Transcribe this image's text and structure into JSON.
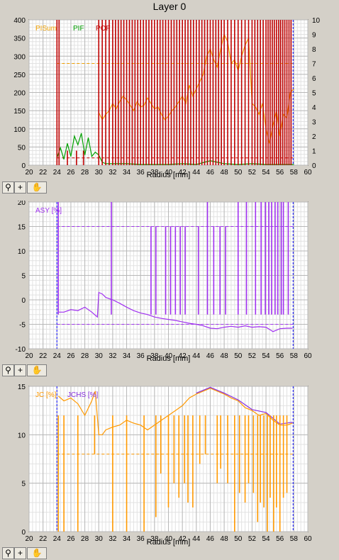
{
  "window": {
    "title": "Layer 0"
  },
  "toolbar": {
    "zoom_icon": "magnifier-zoom-icon",
    "cross_icon": "crosshair-plus-icon",
    "pan_icon": "hand-pan-icon"
  },
  "colors": {
    "pisum": "#f0a000",
    "pif": "#00a000",
    "pof": "#c00000",
    "asy": "#a030f0",
    "jc": "#ff9900",
    "jchs": "#8830e0",
    "cursor": "#3030ff"
  },
  "chart_data": [
    {
      "type": "line",
      "title": "",
      "xlabel": "Radius [mm]",
      "ylim": [
        0,
        400
      ],
      "y2lim": [
        0,
        10
      ],
      "xlim": [
        20,
        60
      ],
      "xticks": [
        "20",
        "22",
        "24",
        "26",
        "28",
        "30",
        "32",
        "34",
        "36",
        "38",
        "40",
        "42",
        "44",
        "46",
        "48",
        "50",
        "52",
        "54",
        "56",
        "58",
        "60"
      ],
      "yticks": [
        "0",
        "50",
        "100",
        "150",
        "200",
        "250",
        "300",
        "350",
        "400"
      ],
      "y2ticks": [
        "0",
        "1",
        "2",
        "3",
        "4",
        "5",
        "6",
        "7",
        "8",
        "9",
        "10"
      ],
      "grid": true,
      "legend": [
        "PISum",
        "PIF",
        "POF"
      ],
      "start_marker_x": 24.0,
      "end_marker_x": 57.9,
      "thresholds": [
        {
          "axis": "left",
          "value": 280,
          "series": "PISum"
        },
        {
          "axis": "left",
          "value": 20,
          "series": "POF"
        }
      ],
      "series": [
        {
          "name": "PISum",
          "axis": "left",
          "x": [
            30.0,
            30.5,
            31.0,
            31.5,
            32.0,
            32.5,
            33.0,
            33.5,
            34.0,
            34.5,
            35.0,
            35.5,
            36.0,
            36.5,
            37.0,
            37.5,
            38.0,
            38.5,
            39.0,
            39.5,
            40.0,
            40.5,
            41.0,
            41.5,
            42.0,
            42.5,
            43.0,
            43.5,
            44.0,
            44.5,
            45.0,
            45.5,
            46.0,
            46.5,
            47.0,
            47.5,
            48.0,
            48.5,
            49.0,
            49.5,
            50.0,
            50.5,
            51.0,
            51.5,
            52.0,
            52.5,
            53.0,
            53.5,
            54.0,
            54.5,
            55.0,
            55.5,
            56.0,
            56.5,
            57.0,
            57.5,
            58.0
          ],
          "y": [
            145,
            125,
            140,
            150,
            170,
            155,
            175,
            190,
            180,
            165,
            150,
            175,
            160,
            165,
            185,
            170,
            155,
            160,
            140,
            125,
            135,
            150,
            160,
            175,
            190,
            170,
            220,
            190,
            210,
            230,
            250,
            300,
            320,
            290,
            270,
            320,
            360,
            340,
            280,
            290,
            260,
            300,
            330,
            350,
            170,
            160,
            140,
            170,
            100,
            60,
            110,
            150,
            80,
            140,
            130,
            200,
            210
          ]
        },
        {
          "name": "PIF",
          "axis": "right",
          "x": [
            24.0,
            24.5,
            25.0,
            25.5,
            26.0,
            26.5,
            27.0,
            27.5,
            28.0,
            28.5,
            29.0,
            29.5,
            30.0,
            30.5,
            31.0,
            32.0,
            34.0,
            36.0,
            38.0,
            40.0,
            42.0,
            44.0,
            46.0,
            48.0,
            50.0,
            52.0,
            54.0,
            56.0,
            58.0
          ],
          "y": [
            0.5,
            1.2,
            0.4,
            1.5,
            0.6,
            2.0,
            1.4,
            2.2,
            0.7,
            1.9,
            0.6,
            0.9,
            0.7,
            0.2,
            0.1,
            0.1,
            0.1,
            0.05,
            0.05,
            0.05,
            0.1,
            0.05,
            0.3,
            0.1,
            0.05,
            0.1,
            0.05,
            0.05,
            0.05
          ]
        },
        {
          "name": "POF",
          "axis": "right",
          "type": "spikes",
          "x": [
            24.0,
            24.3,
            25.5,
            26.8,
            27.8,
            30.0,
            30.5,
            31.0,
            31.5,
            32.0,
            32.4,
            32.8,
            33.2,
            33.6,
            34.0,
            34.4,
            34.8,
            35.2,
            35.6,
            36.0,
            36.4,
            36.8,
            37.2,
            37.6,
            38.0,
            38.4,
            38.8,
            39.2,
            39.6,
            40.0,
            40.4,
            40.8,
            41.2,
            41.6,
            42.0,
            42.4,
            42.8,
            43.2,
            43.6,
            44.0,
            44.4,
            44.8,
            45.2,
            45.6,
            46.0,
            46.4,
            46.8,
            47.2,
            47.6,
            48.0,
            48.5,
            49.0,
            49.5,
            50.0,
            50.5,
            51.0,
            51.5,
            52.0,
            52.4,
            52.8,
            53.2,
            53.6,
            54.0,
            54.3,
            54.6,
            54.9,
            55.2,
            55.5,
            55.8,
            56.1,
            56.4,
            56.7,
            57.0,
            57.3,
            57.6
          ],
          "y": [
            10,
            10,
            1,
            1,
            1,
            10,
            10,
            10,
            10,
            10,
            10,
            10,
            10,
            10,
            10,
            10,
            10,
            10,
            10,
            10,
            10,
            10,
            10,
            10,
            10,
            10,
            10,
            10,
            10,
            10,
            10,
            10,
            10,
            10,
            10,
            10,
            10,
            10,
            10,
            10,
            10,
            10,
            10,
            10,
            10,
            10,
            10,
            10,
            10,
            10,
            10,
            10,
            10,
            10,
            10,
            10,
            10,
            10,
            10,
            10,
            10,
            10,
            10,
            10,
            10,
            10,
            10,
            10,
            10,
            10,
            10,
            10,
            10,
            10,
            10
          ]
        }
      ]
    },
    {
      "type": "line",
      "title": "",
      "xlabel": "Radius [mm]",
      "ylim": [
        -10,
        20
      ],
      "xlim": [
        20,
        60
      ],
      "xticks": [
        "20",
        "22",
        "24",
        "26",
        "28",
        "30",
        "32",
        "34",
        "36",
        "38",
        "40",
        "42",
        "44",
        "46",
        "48",
        "50",
        "52",
        "54",
        "56",
        "58",
        "60"
      ],
      "yticks": [
        "-10",
        "-5",
        "0",
        "5",
        "10",
        "15",
        "20"
      ],
      "grid": true,
      "legend": [
        "ASY [%]"
      ],
      "start_marker_x": 24.0,
      "end_marker_x": 57.9,
      "thresholds": [
        {
          "value": 15
        },
        {
          "value": -5
        }
      ],
      "series": [
        {
          "name": "ASY [%]",
          "x": [
            24.2,
            25.0,
            26.0,
            27.0,
            28.0,
            29.0,
            29.8,
            30.0,
            30.5,
            31.0,
            32.0,
            33.0,
            34.0,
            35.0,
            36.0,
            37.0,
            38.0,
            39.0,
            40.0,
            41.0,
            42.0,
            43.0,
            44.0,
            45.0,
            46.0,
            47.0,
            48.0,
            49.0,
            50.0,
            51.0,
            52.0,
            53.0,
            54.0,
            55.0,
            56.0,
            57.0,
            57.8
          ],
          "y": [
            -2.5,
            -2.5,
            -2.0,
            -2.2,
            -1.5,
            -2.5,
            -3.5,
            1.5,
            1.2,
            0.5,
            0.0,
            -0.7,
            -1.5,
            -2.2,
            -2.7,
            -3.0,
            -3.5,
            -3.8,
            -4.0,
            -4.2,
            -4.5,
            -4.8,
            -5.0,
            -5.3,
            -5.8,
            -5.9,
            -5.6,
            -5.4,
            -5.6,
            -5.3,
            -5.6,
            -5.5,
            -5.6,
            -6.5,
            -5.9,
            -5.8,
            -5.8
          ]
        },
        {
          "name": "ASY spikes",
          "type": "spikes",
          "x": [
            24.2,
            31.8,
            37.5,
            38.2,
            39.6,
            40.3,
            41.0,
            41.7,
            42.4,
            44.3,
            45.6,
            46.5,
            47.4,
            48.2,
            50.0,
            51.2,
            52.5,
            53.3,
            53.9,
            54.4,
            54.8,
            55.3,
            55.7,
            56.2,
            56.5,
            57.2
          ],
          "y": [
            20,
            20,
            15,
            15,
            15,
            15,
            15,
            15,
            15,
            15,
            20,
            15,
            15,
            15,
            20,
            20,
            20,
            20,
            20,
            20,
            20,
            20,
            20,
            20,
            20,
            20
          ]
        }
      ]
    },
    {
      "type": "line",
      "title": "",
      "xlabel": "Radius [mm]",
      "ylim": [
        0,
        15
      ],
      "xlim": [
        20,
        60
      ],
      "xticks": [
        "20",
        "22",
        "24",
        "26",
        "28",
        "30",
        "32",
        "34",
        "36",
        "38",
        "40",
        "42",
        "44",
        "46",
        "48",
        "50",
        "52",
        "54",
        "56",
        "58",
        "60"
      ],
      "yticks": [
        "0",
        "5",
        "10",
        "15"
      ],
      "grid": true,
      "legend": [
        "JC [%]",
        "JCHS [%]"
      ],
      "start_marker_x": 24.0,
      "end_marker_x": 57.9,
      "thresholds": [
        {
          "value": 8
        }
      ],
      "series": [
        {
          "name": "JC [%]",
          "x": [
            24.2,
            25.0,
            26.0,
            27.0,
            28.0,
            29.0,
            29.5,
            30.0,
            30.5,
            31.0,
            32.0,
            33.0,
            34.0,
            35.0,
            36.0,
            37.0,
            38.0,
            39.0,
            40.0,
            41.0,
            42.0,
            43.0,
            44.0,
            45.0,
            46.0,
            47.0,
            48.0,
            49.0,
            50.0,
            51.0,
            52.0,
            53.0,
            54.0,
            55.0,
            56.0,
            57.0,
            57.8
          ],
          "y": [
            14.0,
            13.5,
            13.8,
            13.2,
            12.0,
            13.5,
            14.5,
            10.0,
            10.0,
            10.5,
            10.8,
            11.0,
            11.5,
            11.2,
            11.0,
            10.5,
            11.0,
            11.5,
            12.0,
            12.5,
            13.0,
            13.8,
            14.2,
            14.5,
            14.8,
            14.5,
            14.2,
            13.8,
            13.5,
            12.8,
            12.5,
            12.0,
            12.2,
            11.5,
            11.0,
            11.0,
            11.2
          ]
        },
        {
          "name": "JCHS [%]",
          "x": [
            44.0,
            46.0,
            48.0,
            50.0,
            52.0,
            54.0,
            56.0,
            57.8
          ],
          "y": [
            14.3,
            14.9,
            14.3,
            13.6,
            12.6,
            12.3,
            11.1,
            11.3
          ]
        },
        {
          "name": "JC spikes",
          "type": "spikes",
          "x": [
            24.2,
            25.0,
            27.0,
            29.4,
            32.0,
            34.0,
            36.5,
            38.2,
            38.9,
            40.0,
            40.8,
            41.5,
            42.3,
            42.8,
            43.5,
            44.5,
            45.3,
            47.0,
            47.5,
            48.5,
            49.5,
            50.2,
            51.0,
            51.5,
            52.2,
            52.8,
            53.2,
            53.7,
            54.2,
            54.6,
            55.1,
            55.5,
            56.0,
            56.5,
            57.0
          ],
          "y": [
            0,
            0,
            0,
            8,
            0,
            0,
            0,
            1.5,
            6,
            2.5,
            5,
            3.5,
            5,
            3,
            2.5,
            7,
            8,
            5,
            6.5,
            5,
            0,
            4,
            3,
            5,
            4,
            1,
            3,
            2.5,
            0,
            3.5,
            0,
            2.5,
            0,
            3.5,
            4
          ]
        }
      ]
    }
  ]
}
